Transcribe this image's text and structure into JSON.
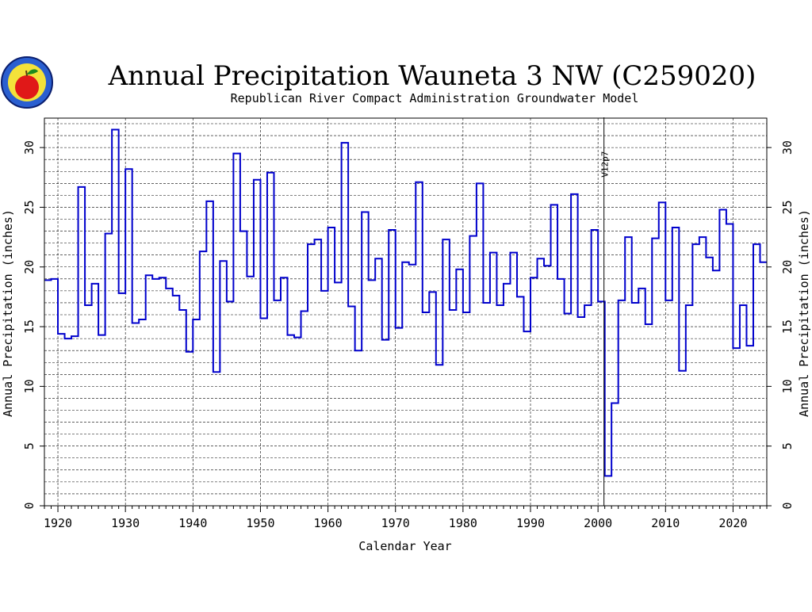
{
  "header": {
    "title": "Annual Precipitation Wauneta 3 NW (C259020)",
    "subtitle": "Republican River Compact Administration Groundwater Model"
  },
  "logo": {
    "icon": "apple-seal-logo"
  },
  "chart_data": {
    "type": "line",
    "step": true,
    "xlabel": "Calendar Year",
    "ylabel": "Annual Precipitation (inches)",
    "ylabel_right": "Annual Precipitation (inches)",
    "xlim": [
      1918,
      2025
    ],
    "ylim": [
      0,
      32
    ],
    "x_ticks": [
      1920,
      1930,
      1940,
      1950,
      1960,
      1970,
      1980,
      1990,
      2000,
      2010,
      2020
    ],
    "y_ticks": [
      0,
      5,
      10,
      15,
      20,
      25,
      30
    ],
    "grid": true,
    "series_color": "#0000cc",
    "annotation": {
      "x": 2001,
      "label": "V12p7"
    },
    "x": [
      1918,
      1919,
      1920,
      1921,
      1922,
      1923,
      1924,
      1925,
      1926,
      1927,
      1928,
      1929,
      1930,
      1931,
      1932,
      1933,
      1934,
      1935,
      1936,
      1937,
      1938,
      1939,
      1940,
      1941,
      1942,
      1943,
      1944,
      1945,
      1946,
      1947,
      1948,
      1949,
      1950,
      1951,
      1952,
      1953,
      1954,
      1955,
      1956,
      1957,
      1958,
      1959,
      1960,
      1961,
      1962,
      1963,
      1964,
      1965,
      1966,
      1967,
      1968,
      1969,
      1970,
      1971,
      1972,
      1973,
      1974,
      1975,
      1976,
      1977,
      1978,
      1979,
      1980,
      1981,
      1982,
      1983,
      1984,
      1985,
      1986,
      1987,
      1988,
      1989,
      1990,
      1991,
      1992,
      1993,
      1994,
      1995,
      1996,
      1997,
      1998,
      1999,
      2000,
      2001,
      2002,
      2003,
      2004,
      2005,
      2006,
      2007,
      2008,
      2009,
      2010,
      2011,
      2012,
      2013,
      2014,
      2015,
      2016,
      2017,
      2018,
      2019,
      2020,
      2021,
      2022,
      2023,
      2024
    ],
    "values": [
      18.9,
      19.0,
      14.4,
      14.0,
      14.2,
      26.7,
      16.8,
      18.6,
      14.3,
      22.8,
      31.5,
      17.8,
      28.2,
      15.3,
      15.6,
      19.3,
      19.0,
      19.1,
      18.2,
      17.6,
      16.4,
      12.9,
      15.6,
      21.3,
      25.5,
      11.2,
      20.5,
      17.1,
      29.5,
      23.0,
      19.2,
      27.3,
      15.7,
      27.9,
      17.2,
      19.1,
      14.3,
      14.1,
      16.3,
      21.9,
      22.3,
      18.0,
      23.3,
      18.7,
      30.4,
      16.7,
      13.0,
      24.6,
      18.9,
      20.7,
      13.9,
      23.1,
      14.9,
      20.4,
      20.2,
      27.1,
      16.2,
      17.9,
      11.8,
      22.3,
      16.4,
      19.8,
      16.2,
      22.6,
      27.0,
      17.0,
      21.2,
      16.8,
      18.6,
      21.2,
      17.5,
      14.6,
      19.1,
      20.7,
      20.1,
      25.2,
      19.0,
      16.1,
      26.1,
      15.8,
      16.8,
      23.1,
      17.1,
      2.5,
      8.6,
      17.2,
      22.5,
      17.0,
      18.2,
      15.2,
      22.4,
      25.4,
      17.2,
      23.3,
      11.3,
      16.8,
      21.9,
      22.5,
      20.8,
      19.7,
      24.8,
      23.6,
      13.2,
      16.8,
      13.4,
      21.9,
      20.4
    ]
  }
}
